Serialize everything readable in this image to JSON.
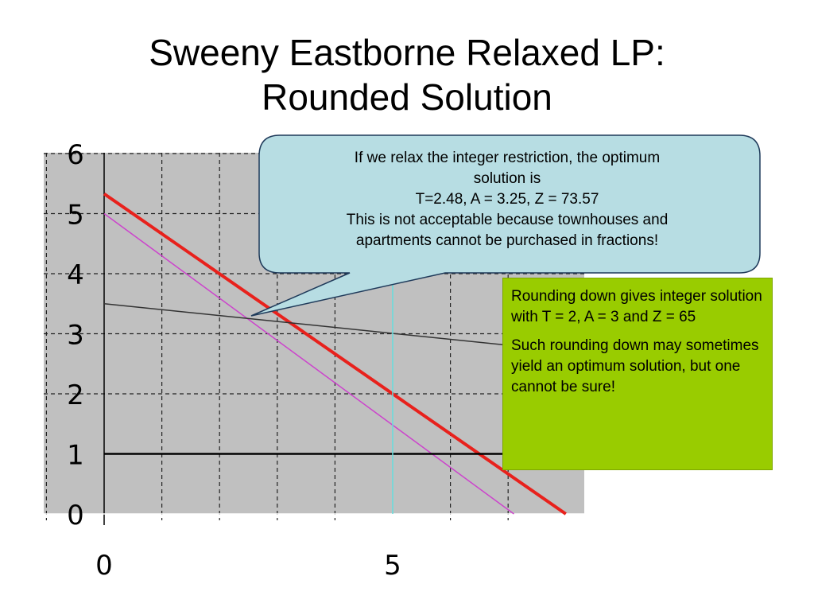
{
  "slide": {
    "title_line1": "Sweeny Eastborne Relaxed LP:",
    "title_line2": "Rounded Solution"
  },
  "callout": {
    "lines": [
      "If we relax the integer restriction, the optimum",
      "solution is",
      "T=2.48, A = 3.25, Z = 73.57",
      "This is not acceptable because townhouses and",
      "apartments cannot be purchased in fractions!"
    ]
  },
  "note_box": {
    "para1": "Rounding down gives integer solution with T = 2, A = 3 and Z = 65",
    "para2": "Such rounding down may sometimes yield an optimum solution, but one cannot be sure!"
  },
  "colors": {
    "plot_bg": "#c0c0c0",
    "callout_fill": "#b7dde3",
    "note_fill": "#99cc00",
    "objective_line": "#e8211c",
    "constraint_pink": "#cc44cc",
    "constraint_dark": "#333333",
    "floor_line": "#000000",
    "vertical_cyan": "#66dddd"
  },
  "chart_data": {
    "type": "line",
    "title": "",
    "xlabel": "",
    "ylabel": "",
    "xlim": [
      0,
      8.1
    ],
    "ylim": [
      0,
      6.3
    ],
    "grid": true,
    "x_ticks": [
      0,
      5
    ],
    "y_ticks": [
      0,
      1,
      2,
      3,
      4,
      5,
      6
    ],
    "series": [
      {
        "points": [
          [
            0,
            5.33
          ],
          [
            8,
            0
          ]
        ],
        "color": "#e8211c",
        "style": "thick"
      },
      {
        "points": [
          [
            0,
            5.0
          ],
          [
            7.1,
            0
          ]
        ],
        "color": "#cc44cc",
        "style": "thin"
      },
      {
        "points": [
          [
            0,
            3.5
          ],
          [
            8.1,
            2.7
          ]
        ],
        "color": "#333333",
        "style": "thin"
      },
      {
        "points": [
          [
            0,
            1
          ],
          [
            8.1,
            1
          ]
        ],
        "color": "#000000",
        "style": "medium"
      },
      {
        "points": [
          [
            5,
            0
          ],
          [
            5,
            4.0
          ]
        ],
        "color": "#66dddd",
        "style": "thin"
      }
    ]
  }
}
